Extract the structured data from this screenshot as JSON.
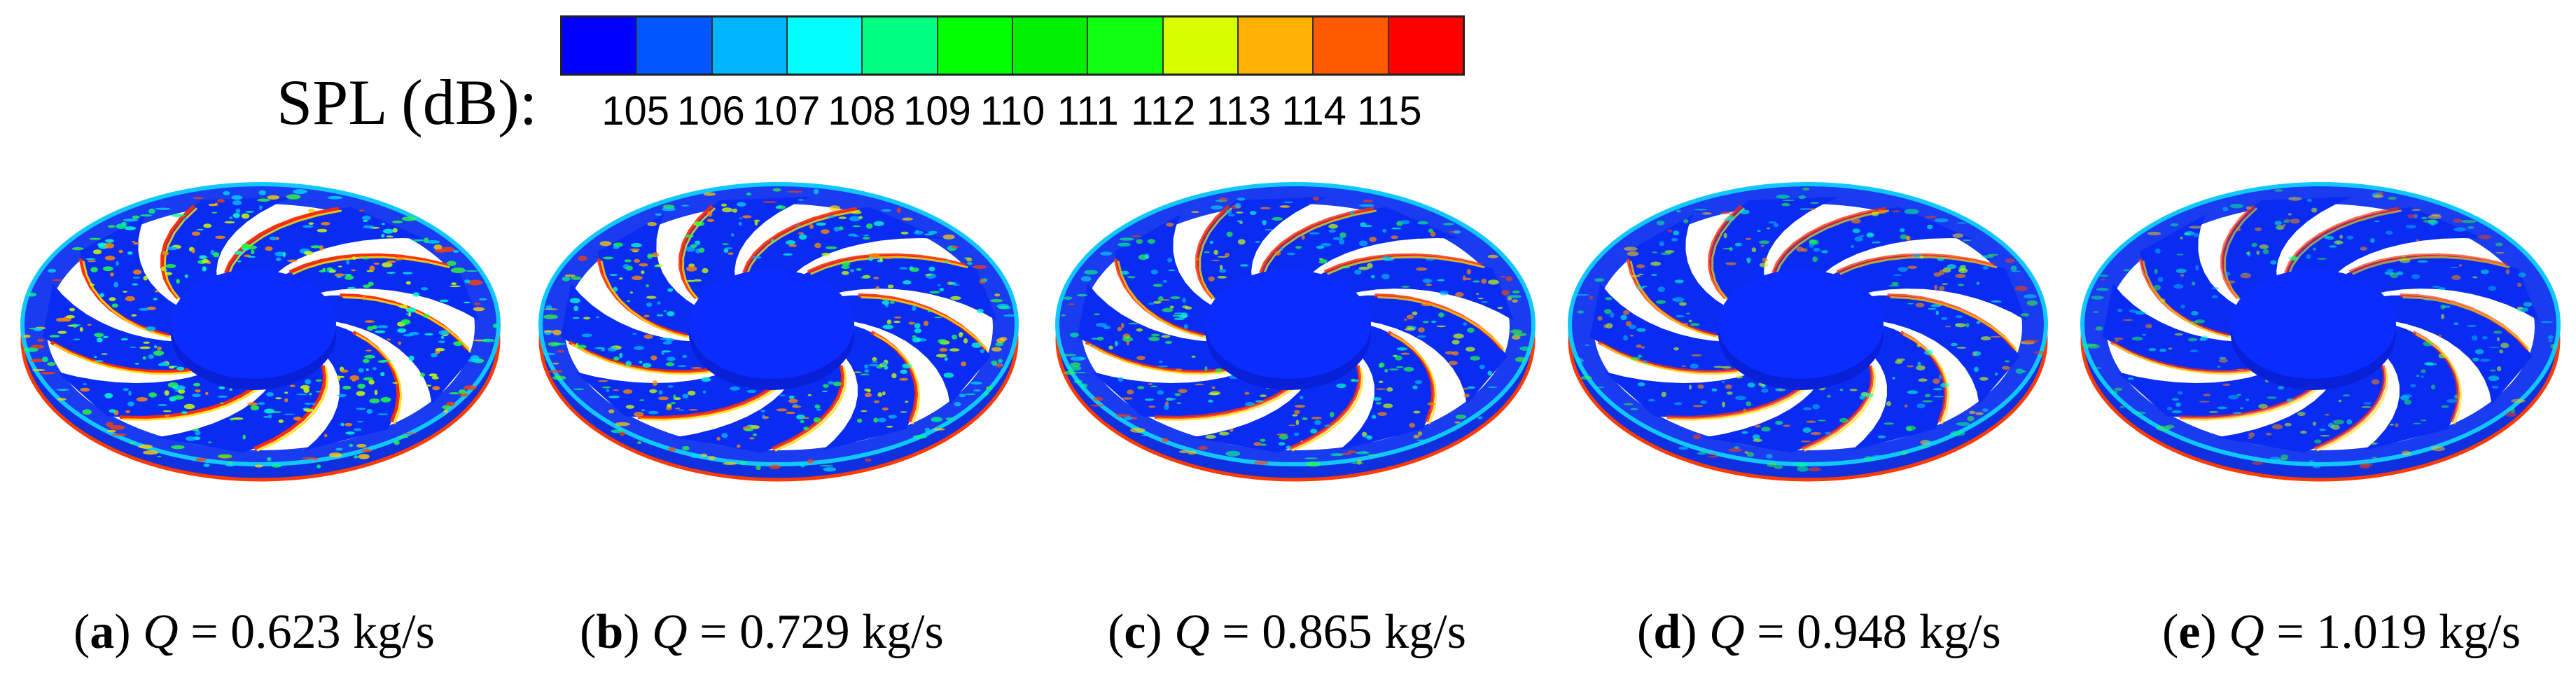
{
  "legend": {
    "title": "SPL (dB):",
    "colors": [
      "#0000ff",
      "#0057ff",
      "#00b4ff",
      "#00ffff",
      "#00ff80",
      "#00ff00",
      "#00f000",
      "#10ff10",
      "#d8ff00",
      "#ffb000",
      "#ff5a00",
      "#ff0000"
    ],
    "ticks": [
      "105",
      "106",
      "107",
      "108",
      "109",
      "110",
      "111",
      "112",
      "113",
      "114",
      "115"
    ]
  },
  "panels": [
    {
      "letter": "a",
      "var": "Q",
      "rest": " = 0.623 kg/s",
      "hot": 0.9
    },
    {
      "letter": "b",
      "var": "Q",
      "rest": " = 0.729 kg/s",
      "hot": 0.75
    },
    {
      "letter": "c",
      "var": "Q",
      "rest": " = 0.865 kg/s",
      "hot": 0.6
    },
    {
      "letter": "d",
      "var": "Q",
      "rest": " = 0.948 kg/s",
      "hot": 0.45
    },
    {
      "letter": "e",
      "var": "Q",
      "rest": " = 1.019 kg/s",
      "hot": 0.3
    }
  ]
}
